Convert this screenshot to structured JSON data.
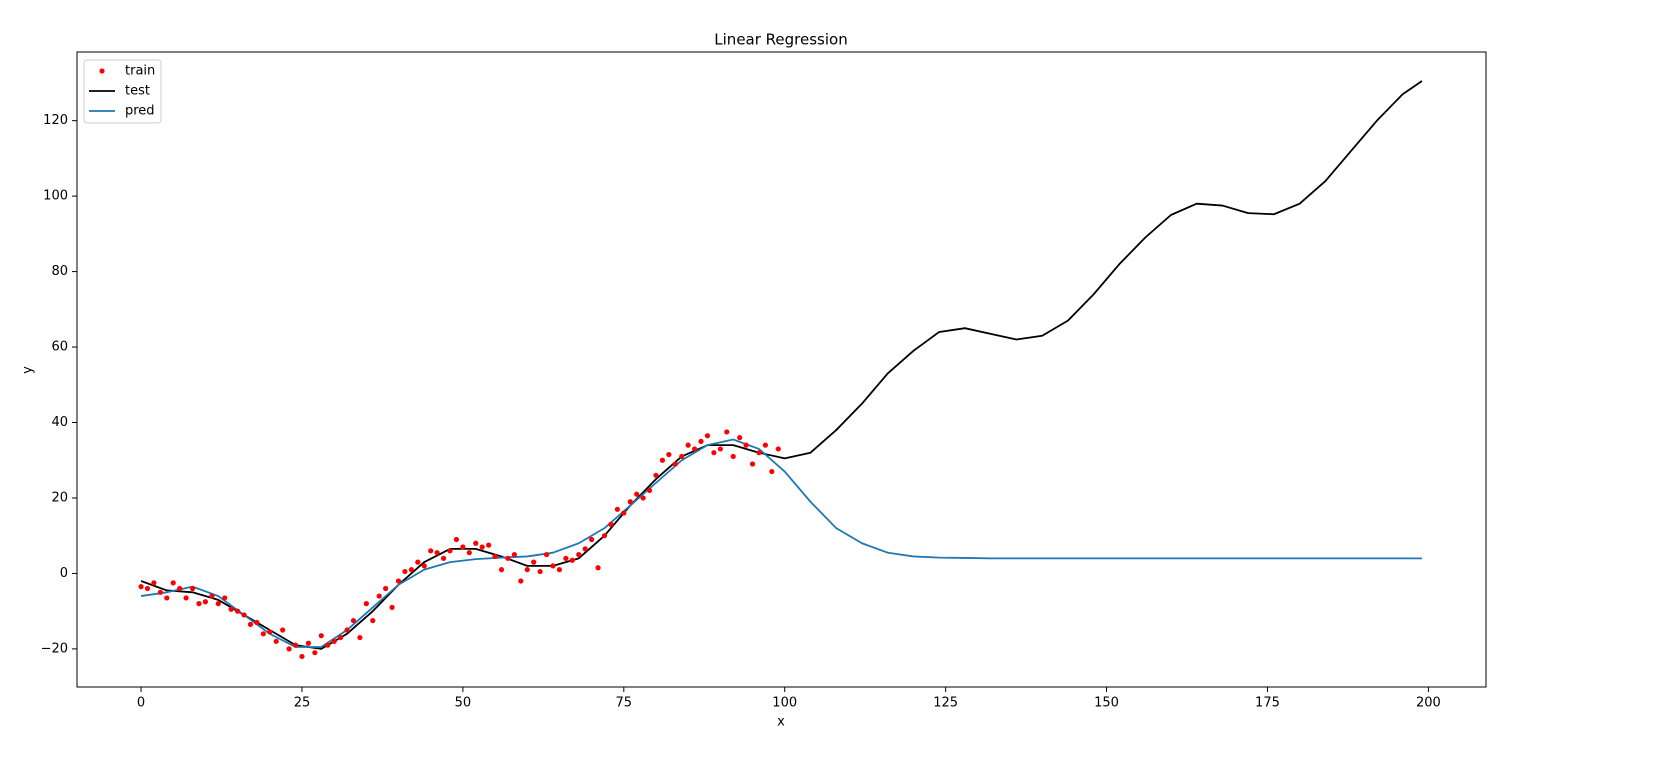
{
  "chart_data": {
    "type": "line",
    "title": "Linear Regression",
    "xlabel": "x",
    "ylabel": "y",
    "xlim": [
      -9.95,
      208.95
    ],
    "ylim": [
      -30.1,
      138.2
    ],
    "xticks": [
      0,
      25,
      50,
      75,
      100,
      125,
      150,
      175,
      200
    ],
    "yticks": [
      {
        "value": -20,
        "label": "−20"
      },
      0,
      20,
      40,
      60,
      80,
      100,
      120
    ],
    "legend": "upper left",
    "series": [
      {
        "name": "train",
        "color": "#ff0000",
        "style": "points",
        "x": [
          0,
          1,
          2,
          3,
          4,
          5,
          6,
          7,
          8,
          9,
          10,
          11,
          12,
          13,
          14,
          15,
          16,
          17,
          18,
          19,
          20,
          21,
          22,
          23,
          24,
          25,
          26,
          27,
          28,
          29,
          30,
          31,
          32,
          33,
          34,
          35,
          36,
          37,
          38,
          39,
          40,
          41,
          42,
          43,
          44,
          45,
          46,
          47,
          48,
          49,
          50,
          51,
          52,
          53,
          54,
          55,
          56,
          57,
          58,
          59,
          60,
          61,
          62,
          63,
          64,
          65,
          66,
          67,
          68,
          69,
          70,
          71,
          72,
          73,
          74,
          75,
          76,
          77,
          78,
          79,
          80,
          81,
          82,
          83,
          84,
          85,
          86,
          87,
          88,
          89,
          90,
          91,
          92,
          93,
          94,
          95,
          96,
          97,
          98,
          99
        ],
        "values": [
          -3.5,
          -4,
          -2.5,
          -5,
          -6.5,
          -2.5,
          -4,
          -6.5,
          -4,
          -8,
          -7.5,
          -6,
          -8,
          -6.5,
          -9.5,
          -10,
          -11,
          -13.5,
          -13,
          -16,
          -15.5,
          -18,
          -15,
          -20,
          -19,
          -22,
          -18.5,
          -21,
          -16.5,
          -19,
          -18,
          -17,
          -15,
          -12.5,
          -17,
          -8,
          -12.5,
          -6,
          -4,
          -9,
          -2,
          0.5,
          1,
          3,
          2,
          6,
          5.5,
          4,
          6,
          9,
          7,
          5.5,
          8,
          7,
          7.5,
          4.5,
          1,
          4,
          5,
          -2,
          1,
          3,
          0.5,
          5,
          2,
          1,
          4,
          3.5,
          5,
          6.5,
          9,
          1.5,
          10,
          13,
          17,
          16,
          19,
          21,
          20,
          22,
          26,
          30,
          31.5,
          29,
          31,
          34,
          33,
          35,
          36.5,
          32,
          33,
          37.5,
          31,
          36,
          34,
          29,
          32,
          34,
          27,
          33
        ]
      },
      {
        "name": "test",
        "color": "#000000",
        "style": "line",
        "x": [
          0,
          4,
          8,
          12,
          16,
          20,
          24,
          28,
          32,
          36,
          40,
          44,
          48,
          52,
          56,
          60,
          64,
          68,
          72,
          76,
          80,
          84,
          88,
          92,
          96,
          100,
          104,
          108,
          112,
          116,
          120,
          124,
          128,
          132,
          136,
          140,
          144,
          148,
          152,
          156,
          160,
          164,
          168,
          172,
          176,
          180,
          184,
          188,
          192,
          196,
          199
        ],
        "values": [
          -2,
          -4.5,
          -5,
          -7,
          -11,
          -15,
          -19,
          -20,
          -16,
          -10,
          -3,
          3,
          6.5,
          6.5,
          4.5,
          2,
          2,
          4,
          10,
          18,
          25,
          31,
          34,
          34,
          32,
          30.5,
          32,
          38,
          45,
          53,
          59,
          64,
          65,
          63.5,
          62,
          63,
          67,
          74,
          82,
          89,
          95,
          98,
          97.5,
          95.5,
          95.2,
          98,
          104,
          112,
          120,
          127,
          130.5
        ]
      },
      {
        "name": "pred",
        "color": "#1f77b4",
        "style": "line",
        "x": [
          0,
          4,
          8,
          12,
          16,
          20,
          24,
          28,
          32,
          36,
          40,
          44,
          48,
          52,
          56,
          60,
          64,
          68,
          72,
          76,
          80,
          84,
          88,
          92,
          96,
          100,
          104,
          108,
          112,
          116,
          120,
          124,
          128,
          132,
          140,
          150,
          160,
          170,
          180,
          190,
          199
        ],
        "values": [
          -6,
          -5,
          -3.5,
          -6,
          -11,
          -16,
          -19.5,
          -19.5,
          -15,
          -9,
          -3,
          1,
          3,
          3.8,
          4.2,
          4.5,
          5.5,
          8,
          12,
          18,
          24,
          30,
          34,
          35.5,
          33,
          27,
          19,
          12,
          8,
          5.5,
          4.5,
          4.2,
          4.1,
          4,
          4,
          4,
          4,
          4,
          4,
          4,
          4
        ]
      }
    ]
  }
}
